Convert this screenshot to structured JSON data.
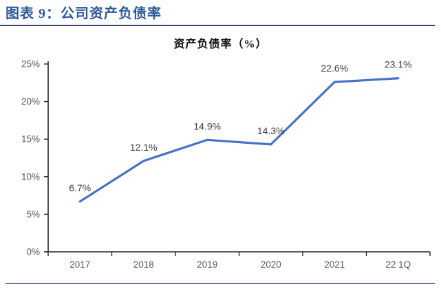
{
  "page": {
    "header_title": "图表 9：公司资产负债率",
    "header_color": "#2D5A9B",
    "header_underline_color": "#31456F",
    "footer_line_color": "#6D73A3"
  },
  "chart": {
    "title": "资产负债率（%）"
  },
  "chart_data": {
    "type": "line",
    "title": "资产负债率（%）",
    "categories": [
      "2017",
      "2018",
      "2019",
      "2020",
      "2021",
      "22 1Q"
    ],
    "values": [
      6.7,
      12.1,
      14.9,
      14.3,
      22.6,
      23.1
    ],
    "point_labels": [
      "6.7%",
      "12.1%",
      "14.9%",
      "14.3%",
      "22.6%",
      "23.1%"
    ],
    "ylim": [
      0,
      25
    ],
    "ytick_labels": [
      "0%",
      "5%",
      "10%",
      "15%",
      "20%",
      "25%"
    ],
    "xlabel": "",
    "ylabel": "",
    "grid": false,
    "legend": "none",
    "line_color": "#4472C4",
    "axis_color": "#262626",
    "tick_label_color": "#595959",
    "data_label_color": "#404040"
  }
}
